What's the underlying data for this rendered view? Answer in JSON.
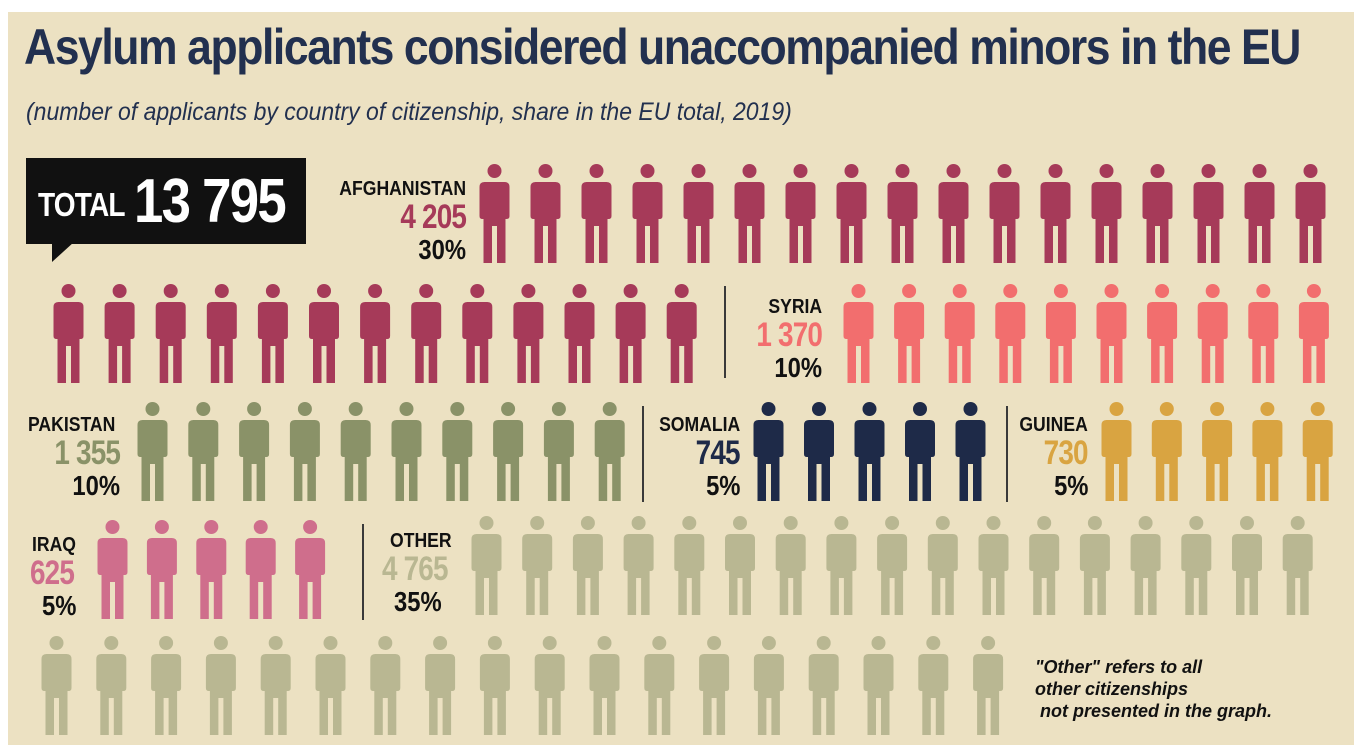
{
  "title": "Asylum applicants considered unaccompanied minors in the EU",
  "subtitle": "(number of applicants by country of citizenship, share in the EU total, 2019)",
  "total": {
    "label": "TOTAL",
    "value": "13 795"
  },
  "note": "\"Other\" refers to all\nother citizenships\n not presented in the graph.",
  "colors": {
    "background": "#ece1c2",
    "title": "#22304f",
    "afghanistan": "#a63a59",
    "syria": "#f26e6e",
    "pakistan": "#8a9268",
    "somalia": "#1e2a48",
    "guinea": "#d9a441",
    "iraq": "#cf6e8c",
    "other": "#b9b792"
  },
  "chart_data": {
    "type": "pictogram",
    "unit_icon": "person-icon",
    "total": 13795,
    "series": [
      {
        "name": "AFGHANISTAN",
        "value": 4205,
        "value_label": "4 205",
        "share": 30,
        "share_label": "30%",
        "icons": 30,
        "color": "#a63a59"
      },
      {
        "name": "SYRIA",
        "value": 1370,
        "value_label": "1 370",
        "share": 10,
        "share_label": "10%",
        "icons": 10,
        "color": "#f26e6e"
      },
      {
        "name": "PAKISTAN",
        "value": 1355,
        "value_label": "1 355",
        "share": 10,
        "share_label": "10%",
        "icons": 10,
        "color": "#8a9268"
      },
      {
        "name": "SOMALIA",
        "value": 745,
        "value_label": "745",
        "share": 5,
        "share_label": "5%",
        "icons": 5,
        "color": "#1e2a48"
      },
      {
        "name": "GUINEA",
        "value": 730,
        "value_label": "730",
        "share": 5,
        "share_label": "5%",
        "icons": 5,
        "color": "#d9a441"
      },
      {
        "name": "IRAQ",
        "value": 625,
        "value_label": "625",
        "share": 5,
        "share_label": "5%",
        "icons": 5,
        "color": "#cf6e8c"
      },
      {
        "name": "OTHER",
        "value": 4765,
        "value_label": "4 765",
        "share": 35,
        "share_label": "35%",
        "icons": 35,
        "color": "#b9b792"
      }
    ]
  }
}
